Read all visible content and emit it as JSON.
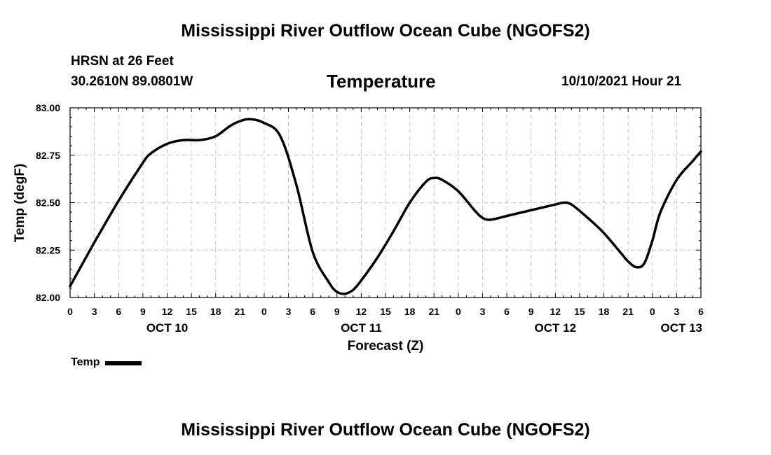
{
  "header": {
    "title": "Mississippi River Outflow Ocean Cube (NGOFS2)",
    "station": "HRSN at 26 Feet",
    "coordinates": "30.2610N  89.0801W",
    "parameter": "Temperature",
    "datetime": "10/10/2021 Hour 21"
  },
  "footer": {
    "title": "Mississippi River Outflow Ocean Cube (NGOFS2)"
  },
  "legend": {
    "label": "Temp"
  },
  "chart_data": {
    "type": "line",
    "title": "Temperature",
    "xlabel": "Forecast (Z)",
    "ylabel": "Temp (degF)",
    "xlim": [
      0,
      78
    ],
    "ylim": [
      82.0,
      83.0
    ],
    "grid": true,
    "y_ticks": [
      "82.00",
      "82.25",
      "82.50",
      "82.75",
      "83.00"
    ],
    "y_tick_values": [
      82.0,
      82.25,
      82.5,
      82.75,
      83.0
    ],
    "x_ticks": [
      {
        "hour": 0,
        "label": "0"
      },
      {
        "hour": 3,
        "label": "3"
      },
      {
        "hour": 6,
        "label": "6"
      },
      {
        "hour": 9,
        "label": "9"
      },
      {
        "hour": 12,
        "label": "12"
      },
      {
        "hour": 15,
        "label": "15"
      },
      {
        "hour": 18,
        "label": "18"
      },
      {
        "hour": 21,
        "label": "21"
      },
      {
        "hour": 24,
        "label": "0"
      },
      {
        "hour": 27,
        "label": "3"
      },
      {
        "hour": 30,
        "label": "6"
      },
      {
        "hour": 33,
        "label": "9"
      },
      {
        "hour": 36,
        "label": "12"
      },
      {
        "hour": 39,
        "label": "15"
      },
      {
        "hour": 42,
        "label": "18"
      },
      {
        "hour": 45,
        "label": "21"
      },
      {
        "hour": 48,
        "label": "0"
      },
      {
        "hour": 51,
        "label": "3"
      },
      {
        "hour": 54,
        "label": "6"
      },
      {
        "hour": 57,
        "label": "9"
      },
      {
        "hour": 60,
        "label": "12"
      },
      {
        "hour": 63,
        "label": "15"
      },
      {
        "hour": 66,
        "label": "18"
      },
      {
        "hour": 69,
        "label": "21"
      },
      {
        "hour": 72,
        "label": "0"
      },
      {
        "hour": 75,
        "label": "3"
      },
      {
        "hour": 78,
        "label": "6"
      }
    ],
    "date_labels": [
      {
        "hour": 12,
        "label": "OCT 10"
      },
      {
        "hour": 36,
        "label": "OCT 11"
      },
      {
        "hour": 60,
        "label": "OCT 12"
      },
      {
        "hour": 78,
        "label": "OCT 13"
      }
    ],
    "series": [
      {
        "name": "Temp",
        "color": "#000000",
        "x": [
          0,
          3,
          6,
          9,
          10,
          12,
          14,
          16,
          18,
          20,
          22,
          24,
          26,
          28,
          30,
          32,
          33,
          34,
          35,
          36,
          38,
          40,
          42,
          44,
          45,
          46,
          48,
          50,
          51,
          52,
          54,
          56,
          58,
          60,
          61,
          62,
          64,
          66,
          68,
          69,
          70,
          71,
          72,
          73,
          75,
          77,
          78
        ],
        "values": [
          82.06,
          82.29,
          82.51,
          82.71,
          82.76,
          82.81,
          82.83,
          82.83,
          82.85,
          82.91,
          82.94,
          82.92,
          82.85,
          82.59,
          82.24,
          82.08,
          82.03,
          82.02,
          82.04,
          82.09,
          82.21,
          82.35,
          82.5,
          82.61,
          82.63,
          82.62,
          82.56,
          82.46,
          82.42,
          82.41,
          82.43,
          82.45,
          82.47,
          82.49,
          82.5,
          82.49,
          82.42,
          82.34,
          82.24,
          82.19,
          82.16,
          82.18,
          82.3,
          82.45,
          82.62,
          82.72,
          82.77
        ]
      }
    ]
  }
}
